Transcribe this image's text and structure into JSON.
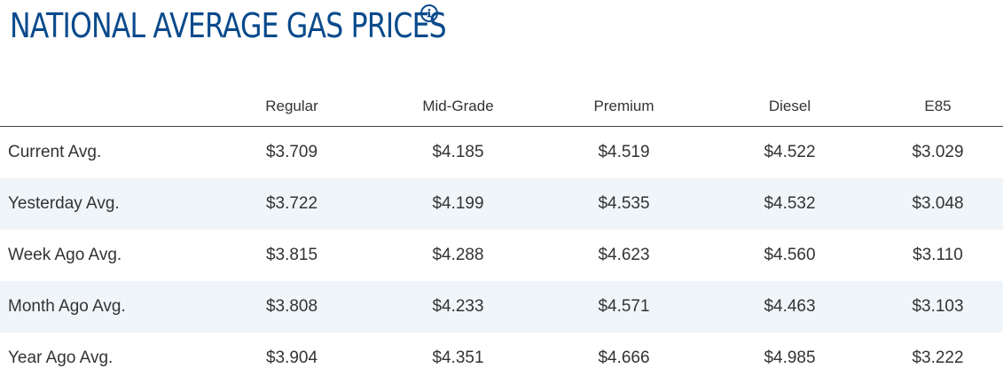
{
  "header": {
    "title": "NATIONAL AVERAGE GAS PRICES",
    "info_icon": "info-icon"
  },
  "table": {
    "columns": [
      "",
      "Regular",
      "Mid-Grade",
      "Premium",
      "Diesel",
      "E85"
    ],
    "rows": [
      {
        "label": "Current Avg.",
        "values": [
          "$3.709",
          "$4.185",
          "$4.519",
          "$4.522",
          "$3.029"
        ]
      },
      {
        "label": "Yesterday Avg.",
        "values": [
          "$3.722",
          "$4.199",
          "$4.535",
          "$4.532",
          "$3.048"
        ]
      },
      {
        "label": "Week Ago Avg.",
        "values": [
          "$3.815",
          "$4.288",
          "$4.623",
          "$4.560",
          "$3.110"
        ]
      },
      {
        "label": "Month Ago Avg.",
        "values": [
          "$3.808",
          "$4.233",
          "$4.571",
          "$4.463",
          "$3.103"
        ]
      },
      {
        "label": "Year Ago Avg.",
        "values": [
          "$3.904",
          "$4.351",
          "$4.666",
          "$4.985",
          "$3.222"
        ]
      }
    ]
  },
  "colors": {
    "title": "#0a4a8c",
    "stripe": "#f0f5f9",
    "text": "#333333"
  }
}
